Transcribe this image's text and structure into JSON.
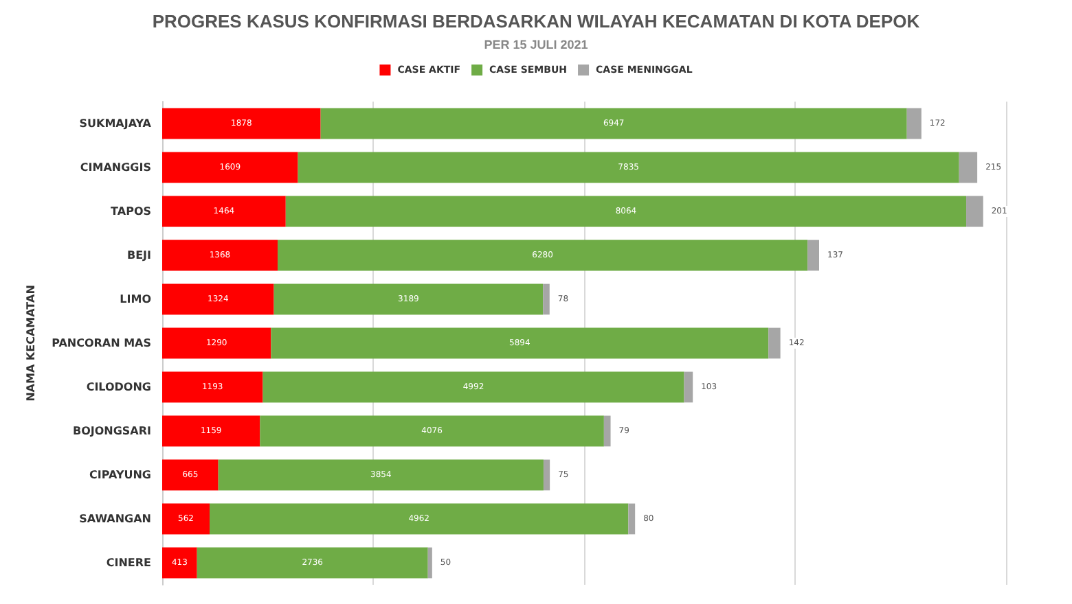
{
  "chart_data": {
    "type": "bar",
    "orientation": "horizontal",
    "stacked": true,
    "title": "PROGRES KASUS KONFIRMASI BERDASARKAN WILAYAH KECAMATAN DI KOTA DEPOK",
    "subtitle": "PER 15 JULI 2021",
    "ylabel": "NAMA KECAMATAN",
    "categories": [
      "SUKMAJAYA",
      "CIMANGGIS",
      "TAPOS",
      "BEJI",
      "LIMO",
      "PANCORAN MAS",
      "CILODONG",
      "BOJONGSARI",
      "CIPAYUNG",
      "SAWANGAN",
      "CINERE"
    ],
    "series": [
      {
        "name": "CASE AKTIF",
        "color": "#ff0000",
        "values": [
          1878,
          1609,
          1464,
          1368,
          1324,
          1290,
          1193,
          1159,
          665,
          562,
          413
        ]
      },
      {
        "name": "CASE SEMBUH",
        "color": "#6fac46",
        "values": [
          6947,
          7835,
          8064,
          6280,
          3189,
          5894,
          4992,
          4076,
          3854,
          4962,
          2736
        ]
      },
      {
        "name": "CASE MENINGGAL",
        "color": "#a6a6a6",
        "values": [
          172,
          215,
          201,
          137,
          78,
          142,
          103,
          79,
          75,
          80,
          50
        ]
      }
    ],
    "xlim": [
      0,
      10000
    ],
    "xticks": [
      {
        "value": 0,
        "label": null
      },
      {
        "value": 2500,
        "label": null
      },
      {
        "value": 5000,
        "label": null
      },
      {
        "value": 7500,
        "label": null
      },
      {
        "value": 10000,
        "label": null
      }
    ],
    "tick_labels": "y",
    "grid": "x",
    "legend": "top",
    "data_labels": true
  }
}
